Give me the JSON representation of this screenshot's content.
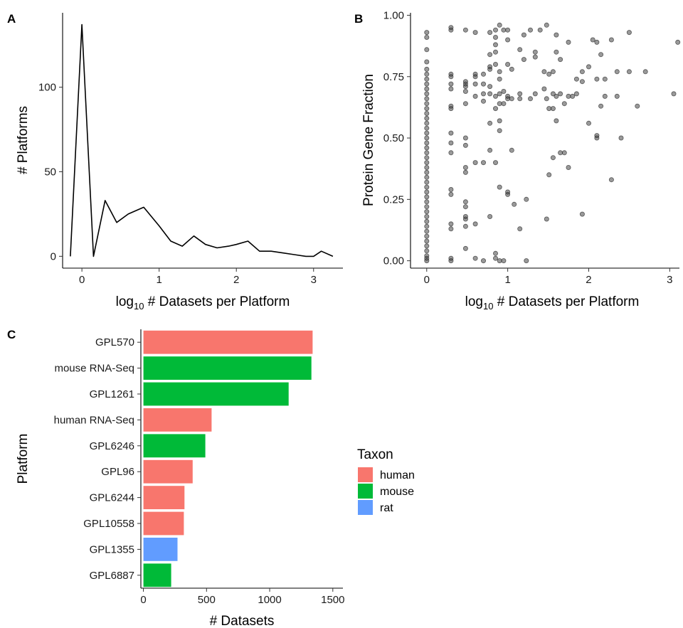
{
  "panels": {
    "a": {
      "label": "A"
    },
    "b": {
      "label": "B"
    },
    "c": {
      "label": "C"
    }
  },
  "chart_data": [
    {
      "type": "line",
      "panel": "A",
      "xlabel_main": "log",
      "xlabel_sub": "10",
      "xlabel_rest": " # Datasets per Platform",
      "ylabel": "# Platforms",
      "xlim": [
        -0.25,
        3.38
      ],
      "ylim": [
        -7,
        144
      ],
      "xticks": [
        0,
        1,
        2,
        3
      ],
      "xtick_labels": [
        "0",
        "1",
        "2",
        "3"
      ],
      "yticks": [
        0,
        50,
        100
      ],
      "ytick_labels": [
        "0",
        "50",
        "100"
      ],
      "grid": false,
      "series": [
        {
          "x": [
            -0.15,
            0,
            0.15,
            0.3,
            0.45,
            0.6,
            0.8,
            1.0,
            1.15,
            1.3,
            1.45,
            1.6,
            1.75,
            1.9,
            2.0,
            2.15,
            2.3,
            2.45,
            2.6,
            2.75,
            2.9,
            3.0,
            3.1,
            3.25
          ],
          "y": [
            0,
            137,
            0,
            33,
            20,
            25,
            29,
            18,
            9,
            6,
            12,
            7,
            5,
            6,
            7,
            9,
            3,
            3,
            2,
            1,
            0,
            0,
            3,
            0
          ]
        }
      ]
    },
    {
      "type": "scatter",
      "panel": "B",
      "xlabel_main": "log",
      "xlabel_sub": "10",
      "xlabel_rest": " # Datasets per Platform",
      "ylabel": "Protein Gene Fraction",
      "xlim": [
        -0.2,
        3.12
      ],
      "ylim": [
        -0.03,
        1.01
      ],
      "xticks": [
        0,
        1,
        2,
        3
      ],
      "xtick_labels": [
        "0",
        "1",
        "2",
        "3"
      ],
      "yticks": [
        0,
        0.25,
        0.5,
        0.75,
        1.0
      ],
      "ytick_labels": [
        "0.00",
        "0.25",
        "0.50",
        "0.75",
        "1.00"
      ],
      "grid": false,
      "point_color": "#333333",
      "points": [
        [
          0,
          0.0
        ],
        [
          0,
          0.01
        ],
        [
          0,
          0.02
        ],
        [
          0,
          0.04
        ],
        [
          0,
          0.06
        ],
        [
          0,
          0.08
        ],
        [
          0,
          0.1
        ],
        [
          0,
          0.12
        ],
        [
          0,
          0.14
        ],
        [
          0,
          0.16
        ],
        [
          0,
          0.18
        ],
        [
          0,
          0.2
        ],
        [
          0,
          0.22
        ],
        [
          0,
          0.24
        ],
        [
          0,
          0.26
        ],
        [
          0,
          0.28
        ],
        [
          0,
          0.3
        ],
        [
          0,
          0.32
        ],
        [
          0,
          0.34
        ],
        [
          0,
          0.36
        ],
        [
          0,
          0.38
        ],
        [
          0,
          0.4
        ],
        [
          0,
          0.42
        ],
        [
          0,
          0.44
        ],
        [
          0,
          0.46
        ],
        [
          0,
          0.48
        ],
        [
          0,
          0.5
        ],
        [
          0,
          0.52
        ],
        [
          0,
          0.54
        ],
        [
          0,
          0.56
        ],
        [
          0,
          0.58
        ],
        [
          0,
          0.6
        ],
        [
          0,
          0.62
        ],
        [
          0,
          0.64
        ],
        [
          0,
          0.66
        ],
        [
          0,
          0.68
        ],
        [
          0,
          0.7
        ],
        [
          0,
          0.72
        ],
        [
          0,
          0.74
        ],
        [
          0,
          0.76
        ],
        [
          0,
          0.78
        ],
        [
          0,
          0.81
        ],
        [
          0,
          0.86
        ],
        [
          0,
          0.91
        ],
        [
          0,
          0.93
        ],
        [
          0.3,
          0.0
        ],
        [
          0.3,
          0.01
        ],
        [
          0.3,
          0.13
        ],
        [
          0.3,
          0.15
        ],
        [
          0.3,
          0.27
        ],
        [
          0.3,
          0.29
        ],
        [
          0.3,
          0.44
        ],
        [
          0.3,
          0.48
        ],
        [
          0.3,
          0.52
        ],
        [
          0.3,
          0.62
        ],
        [
          0.3,
          0.63
        ],
        [
          0.3,
          0.7
        ],
        [
          0.3,
          0.72
        ],
        [
          0.3,
          0.75
        ],
        [
          0.3,
          0.76
        ],
        [
          0.3,
          0.94
        ],
        [
          0.3,
          0.95
        ],
        [
          0.48,
          0.05
        ],
        [
          0.48,
          0.14
        ],
        [
          0.48,
          0.17
        ],
        [
          0.48,
          0.18
        ],
        [
          0.48,
          0.22
        ],
        [
          0.48,
          0.24
        ],
        [
          0.48,
          0.36
        ],
        [
          0.48,
          0.38
        ],
        [
          0.48,
          0.47
        ],
        [
          0.48,
          0.5
        ],
        [
          0.48,
          0.64
        ],
        [
          0.48,
          0.69
        ],
        [
          0.48,
          0.71
        ],
        [
          0.48,
          0.72
        ],
        [
          0.48,
          0.73
        ],
        [
          0.48,
          0.94
        ],
        [
          0.6,
          0.01
        ],
        [
          0.6,
          0.15
        ],
        [
          0.6,
          0.4
        ],
        [
          0.6,
          0.67
        ],
        [
          0.6,
          0.72
        ],
        [
          0.6,
          0.75
        ],
        [
          0.6,
          0.76
        ],
        [
          0.6,
          0.93
        ],
        [
          0.7,
          0.0
        ],
        [
          0.7,
          0.4
        ],
        [
          0.7,
          0.65
        ],
        [
          0.7,
          0.68
        ],
        [
          0.7,
          0.72
        ],
        [
          0.7,
          0.76
        ],
        [
          0.78,
          0.18
        ],
        [
          0.78,
          0.45
        ],
        [
          0.78,
          0.56
        ],
        [
          0.78,
          0.68
        ],
        [
          0.78,
          0.71
        ],
        [
          0.78,
          0.78
        ],
        [
          0.78,
          0.79
        ],
        [
          0.78,
          0.84
        ],
        [
          0.78,
          0.93
        ],
        [
          0.85,
          0.01
        ],
        [
          0.85,
          0.03
        ],
        [
          0.85,
          0.4
        ],
        [
          0.85,
          0.62
        ],
        [
          0.85,
          0.67
        ],
        [
          0.85,
          0.8
        ],
        [
          0.85,
          0.85
        ],
        [
          0.85,
          0.88
        ],
        [
          0.85,
          0.91
        ],
        [
          0.85,
          0.94
        ],
        [
          0.9,
          0.0
        ],
        [
          0.9,
          0.3
        ],
        [
          0.9,
          0.53
        ],
        [
          0.9,
          0.57
        ],
        [
          0.9,
          0.64
        ],
        [
          0.9,
          0.68
        ],
        [
          0.9,
          0.74
        ],
        [
          0.9,
          0.77
        ],
        [
          0.9,
          0.96
        ],
        [
          0.95,
          0.0
        ],
        [
          0.95,
          0.64
        ],
        [
          0.95,
          0.69
        ],
        [
          0.95,
          0.94
        ],
        [
          1.0,
          0.27
        ],
        [
          1.0,
          0.28
        ],
        [
          1.0,
          0.66
        ],
        [
          1.0,
          0.67
        ],
        [
          1.0,
          0.8
        ],
        [
          1.0,
          0.9
        ],
        [
          1.0,
          0.94
        ],
        [
          1.05,
          0.45
        ],
        [
          1.05,
          0.66
        ],
        [
          1.05,
          0.78
        ],
        [
          1.08,
          0.23
        ],
        [
          1.15,
          0.13
        ],
        [
          1.15,
          0.66
        ],
        [
          1.15,
          0.68
        ],
        [
          1.15,
          0.86
        ],
        [
          1.2,
          0.82
        ],
        [
          1.2,
          0.92
        ],
        [
          1.23,
          0.25
        ],
        [
          1.23,
          0.0
        ],
        [
          1.28,
          0.66
        ],
        [
          1.28,
          0.94
        ],
        [
          1.34,
          0.68
        ],
        [
          1.34,
          0.83
        ],
        [
          1.34,
          0.85
        ],
        [
          1.4,
          0.94
        ],
        [
          1.45,
          0.7
        ],
        [
          1.45,
          0.77
        ],
        [
          1.48,
          0.17
        ],
        [
          1.48,
          0.66
        ],
        [
          1.48,
          0.96
        ],
        [
          1.51,
          0.35
        ],
        [
          1.51,
          0.62
        ],
        [
          1.51,
          0.76
        ],
        [
          1.56,
          0.42
        ],
        [
          1.56,
          0.62
        ],
        [
          1.56,
          0.68
        ],
        [
          1.56,
          0.77
        ],
        [
          1.6,
          0.57
        ],
        [
          1.6,
          0.67
        ],
        [
          1.6,
          0.85
        ],
        [
          1.6,
          0.92
        ],
        [
          1.65,
          0.44
        ],
        [
          1.65,
          0.68
        ],
        [
          1.65,
          0.82
        ],
        [
          1.7,
          0.44
        ],
        [
          1.7,
          0.64
        ],
        [
          1.75,
          0.38
        ],
        [
          1.75,
          0.67
        ],
        [
          1.75,
          0.89
        ],
        [
          1.8,
          0.67
        ],
        [
          1.85,
          0.68
        ],
        [
          1.85,
          0.74
        ],
        [
          1.92,
          0.19
        ],
        [
          1.92,
          0.73
        ],
        [
          1.92,
          0.77
        ],
        [
          2.0,
          0.79
        ],
        [
          2.0,
          0.56
        ],
        [
          2.05,
          0.9
        ],
        [
          2.1,
          0.5
        ],
        [
          2.1,
          0.51
        ],
        [
          2.1,
          0.74
        ],
        [
          2.1,
          0.89
        ],
        [
          2.15,
          0.63
        ],
        [
          2.15,
          0.84
        ],
        [
          2.2,
          0.74
        ],
        [
          2.2,
          0.67
        ],
        [
          2.28,
          0.33
        ],
        [
          2.28,
          0.9
        ],
        [
          2.35,
          0.77
        ],
        [
          2.35,
          0.67
        ],
        [
          2.4,
          0.5
        ],
        [
          2.5,
          0.77
        ],
        [
          2.5,
          0.93
        ],
        [
          2.6,
          0.63
        ],
        [
          2.7,
          0.77
        ],
        [
          3.05,
          0.68
        ],
        [
          3.1,
          0.89
        ]
      ]
    },
    {
      "type": "bar",
      "panel": "C",
      "orientation": "horizontal",
      "ylabel": "Platform",
      "xlabel": "# Datasets",
      "xlim": [
        -20,
        1580
      ],
      "xticks": [
        0,
        500,
        1000,
        1500
      ],
      "xtick_labels": [
        "0",
        "500",
        "1000",
        "1500"
      ],
      "grid": false,
      "categories": [
        "GPL570",
        "mouse RNA-Seq",
        "GPL1261",
        "human RNA-Seq",
        "GPL6246",
        "GPL96",
        "GPL6244",
        "GPL10558",
        "GPL1355",
        "GPL6887"
      ],
      "values": [
        1340,
        1330,
        1150,
        540,
        490,
        390,
        325,
        320,
        270,
        220
      ],
      "taxon": [
        "human",
        "mouse",
        "mouse",
        "human",
        "mouse",
        "human",
        "human",
        "human",
        "rat",
        "mouse"
      ],
      "legend": {
        "title": "Taxon",
        "placement": "right",
        "entries": [
          {
            "name": "human",
            "color": "#f8766d"
          },
          {
            "name": "mouse",
            "color": "#00ba38"
          },
          {
            "name": "rat",
            "color": "#619cff"
          }
        ]
      }
    }
  ]
}
